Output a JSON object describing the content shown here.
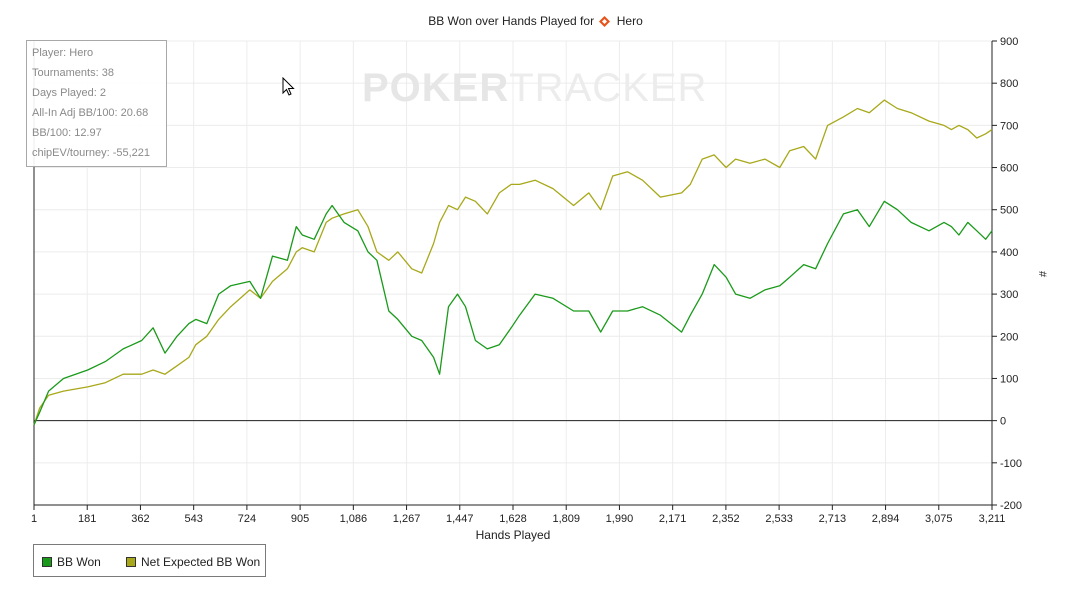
{
  "chart_data": {
    "type": "line",
    "title_prefix": "BB Won over Hands Played for",
    "title_player": "Hero",
    "xlabel": "Hands Played",
    "ylabel": "#",
    "xlim": [
      1,
      3211
    ],
    "ylim": [
      -200,
      900
    ],
    "x_ticks": [
      "1",
      "181",
      "362",
      "543",
      "724",
      "905",
      "1,086",
      "1,267",
      "1,447",
      "1,628",
      "1,809",
      "1,990",
      "2,171",
      "2,352",
      "2,533",
      "2,713",
      "2,894",
      "3,075",
      "3,211"
    ],
    "y_ticks": [
      -200,
      -100,
      0,
      100,
      200,
      300,
      400,
      500,
      600,
      700,
      800,
      900
    ],
    "grid": true,
    "legend_position": "bottom-left",
    "series": [
      {
        "name": "BB Won",
        "color": "#1a9a1a",
        "x": [
          1,
          20,
          50,
          100,
          181,
          240,
          300,
          362,
          400,
          440,
          480,
          520,
          543,
          580,
          620,
          660,
          724,
          760,
          800,
          850,
          880,
          900,
          940,
          980,
          1000,
          1040,
          1086,
          1120,
          1150,
          1190,
          1220,
          1267,
          1300,
          1340,
          1360,
          1390,
          1420,
          1447,
          1480,
          1520,
          1560,
          1600,
          1628,
          1680,
          1740,
          1809,
          1860,
          1900,
          1940,
          1990,
          2040,
          2100,
          2171,
          2200,
          2240,
          2280,
          2320,
          2352,
          2400,
          2450,
          2500,
          2533,
          2580,
          2620,
          2660,
          2713,
          2760,
          2800,
          2850,
          2894,
          2940,
          3000,
          3050,
          3075,
          3100,
          3130,
          3160,
          3190,
          3211
        ],
        "values": [
          -10,
          20,
          70,
          100,
          120,
          140,
          170,
          190,
          220,
          160,
          200,
          230,
          240,
          230,
          300,
          320,
          330,
          290,
          390,
          380,
          460,
          440,
          430,
          490,
          510,
          470,
          450,
          400,
          380,
          260,
          240,
          200,
          190,
          150,
          110,
          270,
          300,
          270,
          190,
          170,
          180,
          220,
          250,
          300,
          290,
          260,
          260,
          210,
          260,
          260,
          270,
          250,
          210,
          250,
          300,
          370,
          340,
          300,
          290,
          310,
          320,
          340,
          370,
          360,
          420,
          490,
          500,
          460,
          520,
          500,
          470,
          450,
          470,
          460,
          440,
          470,
          450,
          430,
          450
        ]
      },
      {
        "name": "Net Expected BB Won",
        "color": "#a8a81a",
        "x": [
          1,
          20,
          50,
          100,
          181,
          240,
          300,
          362,
          400,
          440,
          480,
          520,
          543,
          580,
          620,
          660,
          724,
          760,
          800,
          850,
          880,
          900,
          940,
          980,
          1000,
          1040,
          1086,
          1120,
          1150,
          1190,
          1220,
          1267,
          1300,
          1340,
          1360,
          1390,
          1420,
          1447,
          1480,
          1520,
          1560,
          1600,
          1628,
          1680,
          1740,
          1809,
          1860,
          1900,
          1940,
          1990,
          2040,
          2100,
          2171,
          2200,
          2240,
          2280,
          2320,
          2352,
          2400,
          2450,
          2500,
          2533,
          2580,
          2620,
          2660,
          2713,
          2760,
          2800,
          2850,
          2894,
          2940,
          3000,
          3050,
          3075,
          3100,
          3130,
          3160,
          3190,
          3211
        ],
        "values": [
          -10,
          30,
          60,
          70,
          80,
          90,
          110,
          110,
          120,
          110,
          130,
          150,
          180,
          200,
          240,
          270,
          310,
          290,
          330,
          360,
          400,
          410,
          400,
          470,
          480,
          490,
          500,
          460,
          400,
          380,
          400,
          360,
          350,
          420,
          470,
          510,
          500,
          530,
          520,
          490,
          540,
          560,
          560,
          570,
          550,
          510,
          540,
          500,
          580,
          590,
          570,
          530,
          540,
          560,
          620,
          630,
          600,
          620,
          610,
          620,
          600,
          640,
          650,
          620,
          700,
          720,
          740,
          730,
          760,
          740,
          730,
          710,
          700,
          690,
          700,
          690,
          670,
          680,
          690
        ]
      }
    ]
  },
  "stats_box": {
    "player": "Player: Hero",
    "tournaments": "Tournaments: 38",
    "days_played": "Days Played: 2",
    "allin_adj": "All-In Adj BB/100: 20.68",
    "bb100": "BB/100: 12.97",
    "chipev": "chipEV/tourney: -55,221"
  },
  "legend": {
    "bb_won": "BB Won",
    "net_expected": "Net Expected BB Won"
  },
  "watermark": {
    "poker": "POKER",
    "tracker": "TRACKER"
  },
  "colors": {
    "bb_won": "#1a9a1a",
    "net_expected": "#a8a81a",
    "hero_icon": "#e8531a",
    "grid": "#ececec",
    "axis": "#222222"
  }
}
